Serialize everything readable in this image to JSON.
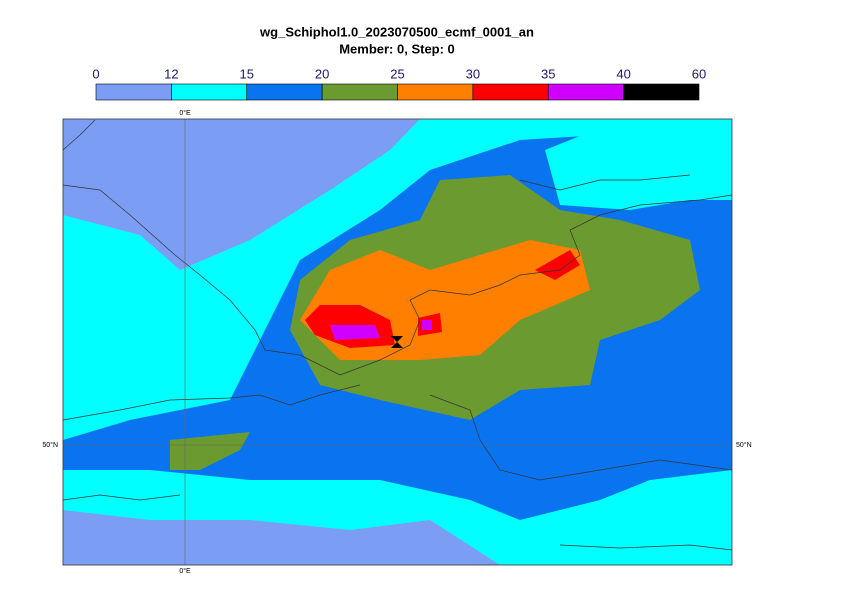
{
  "title": "wg_Schiphol1.0_2023070500_ecmf_0001_an",
  "subtitle": "Member: 0, Step: 0",
  "colorbar": {
    "ticks": [
      0,
      12,
      15,
      20,
      25,
      30,
      35,
      40,
      60
    ],
    "colors": [
      "#7b9ef4",
      "#00ffff",
      "#0a74f0",
      "#6b9a30",
      "#ff8000",
      "#ff0000",
      "#d000ff",
      "#000000"
    ]
  },
  "gridlines": {
    "meridian": "0°E",
    "parallel": "50°N"
  }
}
